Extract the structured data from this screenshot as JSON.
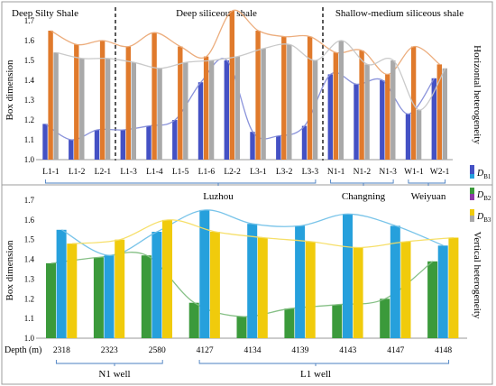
{
  "chart_data": [
    {
      "type": "bar",
      "id": "horizontal",
      "ylabel": "Box dimension",
      "side_label": "Horizontal heterogeneity",
      "ylim": [
        1.0,
        1.75
      ],
      "yticks": [
        "1.0",
        "1.1",
        "1.2",
        "1.3",
        "1.4",
        "1.5",
        "1.6",
        "1.7"
      ],
      "categories": [
        "L1-1",
        "L1-2",
        "L2-1",
        "L1-3",
        "L1-4",
        "L1-5",
        "L1-6",
        "L2-2",
        "L3-1",
        "L3-2",
        "L3-3",
        "N1-1",
        "N1-2",
        "N1-3",
        "W1-1",
        "W2-1"
      ],
      "series": [
        {
          "color": "#4451c4",
          "values": [
            1.18,
            1.1,
            1.15,
            1.15,
            1.17,
            1.2,
            1.39,
            1.5,
            1.14,
            1.12,
            1.17,
            1.43,
            1.38,
            1.4,
            1.23,
            1.41
          ]
        },
        {
          "color": "#e07a2c",
          "values": [
            1.65,
            1.58,
            1.6,
            1.57,
            1.64,
            1.57,
            1.52,
            1.75,
            1.65,
            1.62,
            1.62,
            1.54,
            1.55,
            1.43,
            1.57,
            1.48
          ]
        },
        {
          "color": "#a9a9a9",
          "values": [
            1.54,
            1.51,
            1.51,
            1.49,
            1.46,
            1.49,
            1.5,
            1.52,
            1.56,
            1.58,
            1.5,
            1.6,
            1.48,
            1.5,
            1.25,
            1.46
          ]
        }
      ],
      "zone_titles": [
        "Deep Silty Shale",
        "Deep siliceous shale",
        "Shallow-medium siliceous shale"
      ],
      "groups": [
        {
          "label": "Luzhou"
        },
        {
          "label": "Changning"
        },
        {
          "label": "Weiyuan"
        }
      ]
    },
    {
      "type": "bar",
      "id": "vertical",
      "ylabel": "Box dimension",
      "side_label": "Vertical heterogeneity",
      "ylim": [
        1.0,
        1.7
      ],
      "yticks": [
        "1.0",
        "1.1",
        "1.2",
        "1.3",
        "1.4",
        "1.5",
        "1.6",
        "1.7"
      ],
      "xlabel": "Depth (m)",
      "categories": [
        "2318",
        "2323",
        "2580",
        "4127",
        "4134",
        "4139",
        "4143",
        "4147",
        "4148"
      ],
      "series": [
        {
          "color": "#3b9a3b",
          "values": [
            1.38,
            1.41,
            1.42,
            1.18,
            1.11,
            1.15,
            1.17,
            1.2,
            1.39
          ]
        },
        {
          "color": "#26a0dc",
          "values": [
            1.55,
            1.42,
            1.54,
            1.65,
            1.58,
            1.57,
            1.63,
            1.57,
            1.47
          ]
        },
        {
          "color": "#f0cb0c",
          "values": [
            1.48,
            1.5,
            1.6,
            1.54,
            1.51,
            1.49,
            1.46,
            1.49,
            1.51
          ]
        }
      ],
      "groups": [
        {
          "label": "N1 well"
        },
        {
          "label": "L1 well"
        }
      ]
    }
  ],
  "legend": [
    {
      "prefix": "D",
      "sub": "B1",
      "colors": [
        "#4451c4",
        "#26a0dc"
      ]
    },
    {
      "prefix": "D",
      "sub": "B2",
      "colors": [
        "#3b9a3b",
        "#8e3aa8"
      ]
    },
    {
      "prefix": "D",
      "sub": "B3",
      "colors": [
        "#f0cb0c",
        "#a9a9a9"
      ]
    }
  ]
}
